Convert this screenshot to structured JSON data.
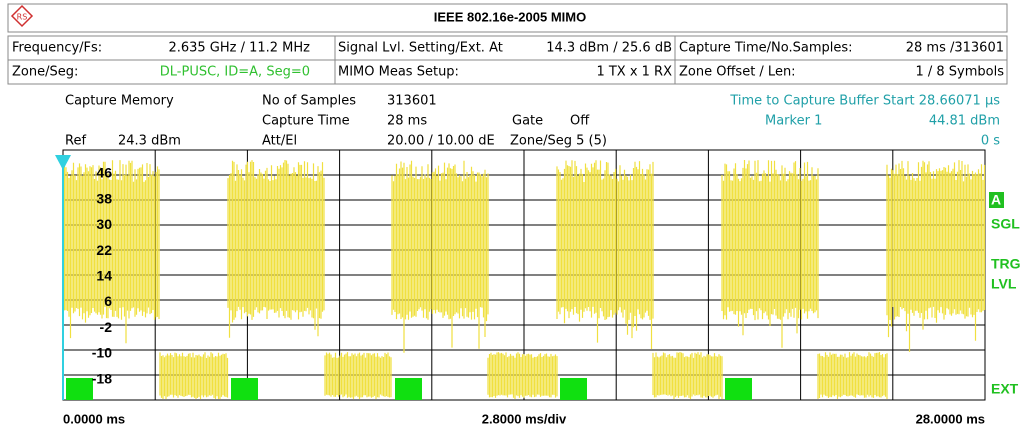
{
  "header": {
    "title": "IEEE 802.16e-2005 MIMO"
  },
  "settings": {
    "rows": [
      [
        {
          "label": "Frequency/Fs:",
          "value": "2.635 GHz / 11.2 MHz"
        },
        {
          "label": "Signal Lvl. Setting/Ext. At",
          "value": "14.3 dBm / 25.6 dB"
        },
        {
          "label": "Capture Time/No.Samples:",
          "value": "28 ms /313601"
        }
      ],
      [
        {
          "label": "Zone/Seg:",
          "value": "DL-PUSC, ID=A, Seg=0"
        },
        {
          "label": "MIMO Meas Setup:",
          "value": "1  TX x 1  RX"
        },
        {
          "label": "Zone Offset / Len:",
          "value": "1 / 8 Symbols"
        }
      ]
    ]
  },
  "info": {
    "capture_memory": "Capture Memory",
    "no_of_samples_label": "No of Samples",
    "no_of_samples": "313601",
    "capture_time_label": "Capture Time",
    "capture_time": "28 ms",
    "gate_label": "Gate",
    "gate": "Off",
    "ref_label": "Ref",
    "ref": "24.3 dBm",
    "att_label": "Att/El",
    "att": "20.00 / 10.00 dE",
    "zone_seg": "Zone/Seg 5 (5)",
    "buffer_start": "Time to Capture Buffer Start 28.66071 µs",
    "marker_label": "Marker  1",
    "marker_value": "44.81 dBm",
    "marker_time": "0 s"
  },
  "plot": {
    "y_labels": [
      "46",
      "38",
      "30",
      "22",
      "14",
      "6",
      "-2",
      "-10",
      "-18"
    ],
    "x_start": "0.0000 ms",
    "x_div": "2.8000 ms/div",
    "x_end": "28.0000 ms",
    "side": {
      "a": "A",
      "sgl": "SGL",
      "trg": "TRG",
      "lvl": "LVL",
      "ext": "EXT"
    }
  }
}
